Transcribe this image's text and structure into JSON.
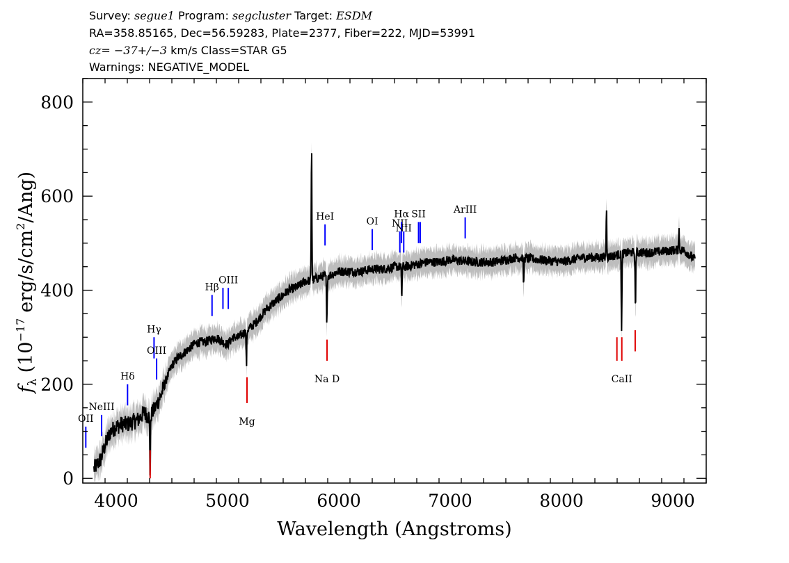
{
  "header": {
    "line1": {
      "survey_label": "Survey:",
      "survey": "segue1",
      "program_label": "Program:",
      "program": "segcluster",
      "target_label": "Target:",
      "target": "ESDM"
    },
    "line2": "RA=358.85165, Dec=56.59283, Plate=2377, Fiber=222, MJD=53991",
    "line3": {
      "cz_label": "cz=",
      "cz_value": "−37+/−3",
      "rest": "km/s Class=STAR G5"
    },
    "line4": "Warnings: NEGATIVE_MODEL"
  },
  "chart_data": {
    "type": "line",
    "xlabel": "Wavelength (Angstroms)",
    "ylabel": {
      "f": "f",
      "sub": "λ",
      "pre": "(10",
      "exp": "−17",
      "mid": "erg/s/cm",
      "exp2": "2",
      "post": "/Ang)"
    },
    "xlim": [
      3700,
      9300
    ],
    "ylim": [
      -10,
      850
    ],
    "xticks": [
      4000,
      5000,
      6000,
      7000,
      8000,
      9000
    ],
    "xtick_labels": [
      "4000",
      "5000",
      "6000",
      "7000",
      "8000",
      "9000"
    ],
    "yticks": [
      0,
      200,
      400,
      600,
      800
    ],
    "ytick_labels": [
      "0",
      "200",
      "400",
      "600",
      "800"
    ],
    "spectrum": {
      "x_range": [
        3800,
        9200
      ],
      "anchors": [
        [
          3800,
          20
        ],
        [
          3860,
          40
        ],
        [
          3900,
          70
        ],
        [
          3950,
          100
        ],
        [
          4000,
          110
        ],
        [
          4050,
          115
        ],
        [
          4100,
          115
        ],
        [
          4150,
          120
        ],
        [
          4200,
          125
        ],
        [
          4250,
          140
        ],
        [
          4300,
          130
        ],
        [
          4350,
          150
        ],
        [
          4400,
          175
        ],
        [
          4450,
          210
        ],
        [
          4500,
          240
        ],
        [
          4550,
          255
        ],
        [
          4600,
          265
        ],
        [
          4650,
          275
        ],
        [
          4700,
          285
        ],
        [
          4750,
          290
        ],
        [
          4800,
          290
        ],
        [
          4850,
          295
        ],
        [
          4900,
          300
        ],
        [
          4950,
          290
        ],
        [
          5000,
          285
        ],
        [
          5050,
          300
        ],
        [
          5100,
          300
        ],
        [
          5150,
          310
        ],
        [
          5200,
          320
        ],
        [
          5250,
          330
        ],
        [
          5300,
          345
        ],
        [
          5350,
          360
        ],
        [
          5400,
          370
        ],
        [
          5450,
          380
        ],
        [
          5500,
          390
        ],
        [
          5550,
          400
        ],
        [
          5600,
          405
        ],
        [
          5650,
          410
        ],
        [
          5700,
          420
        ],
        [
          5750,
          420
        ],
        [
          5800,
          425
        ],
        [
          5850,
          430
        ],
        [
          5900,
          430
        ],
        [
          5950,
          435
        ],
        [
          6000,
          440
        ],
        [
          6100,
          440
        ],
        [
          6200,
          440
        ],
        [
          6300,
          445
        ],
        [
          6400,
          445
        ],
        [
          6500,
          450
        ],
        [
          6600,
          450
        ],
        [
          6700,
          455
        ],
        [
          6800,
          460
        ],
        [
          6900,
          460
        ],
        [
          7000,
          465
        ],
        [
          7200,
          460
        ],
        [
          7400,
          460
        ],
        [
          7600,
          470
        ],
        [
          7800,
          465
        ],
        [
          8000,
          460
        ],
        [
          8200,
          470
        ],
        [
          8400,
          470
        ],
        [
          8600,
          480
        ],
        [
          8800,
          480
        ],
        [
          9000,
          485
        ],
        [
          9100,
          485
        ],
        [
          9200,
          465
        ]
      ],
      "features": [
        {
          "x": 4305,
          "y": 10
        },
        {
          "x": 5170,
          "y": 240
        },
        {
          "x": 5755,
          "y": 710
        },
        {
          "x": 5892,
          "y": 320
        },
        {
          "x": 6565,
          "y": 385
        },
        {
          "x": 7660,
          "y": 410
        },
        {
          "x": 8404,
          "y": 570
        },
        {
          "x": 8540,
          "y": 320
        },
        {
          "x": 8664,
          "y": 360
        },
        {
          "x": 9055,
          "y": 535
        }
      ]
    },
    "emission_lines": [
      {
        "name": "OII",
        "label": "OII",
        "x": 3727,
        "y0": 65,
        "y1": 110,
        "label_y": 120
      },
      {
        "name": "NeIII",
        "label": "NeIII",
        "x": 3869,
        "y0": 90,
        "y1": 135,
        "label_y": 145
      },
      {
        "name": "H-delta",
        "label": "Hδ",
        "x": 4102,
        "y0": 155,
        "y1": 200,
        "label_y": 210
      },
      {
        "name": "H-gamma",
        "label": "Hγ",
        "x": 4340,
        "y0": 255,
        "y1": 300,
        "label_y": 310
      },
      {
        "name": "OIII-4363",
        "label": "OIII",
        "x": 4363,
        "y0": 210,
        "y1": 255,
        "label_y": 265
      },
      {
        "name": "H-beta",
        "label": "Hβ",
        "x": 4861,
        "y0": 345,
        "y1": 390,
        "label_y": 400
      },
      {
        "name": "OIII-4959",
        "label": "",
        "x": 4959,
        "y0": 360,
        "y1": 405,
        "label_y": 0
      },
      {
        "name": "OIII-5007",
        "label": "OIII",
        "x": 5007,
        "y0": 360,
        "y1": 405,
        "label_y": 415
      },
      {
        "name": "HeI",
        "label": "HeI",
        "x": 5876,
        "y0": 495,
        "y1": 540,
        "label_y": 550
      },
      {
        "name": "OI",
        "label": "OI",
        "x": 6300,
        "y0": 485,
        "y1": 530,
        "label_y": 540
      },
      {
        "name": "NII-6548",
        "label": "NII",
        "x": 6548,
        "y0": 480,
        "y1": 525,
        "label_y": 535
      },
      {
        "name": "H-alpha",
        "label": "Hα",
        "x": 6563,
        "y0": 500,
        "y1": 545,
        "label_y": 555
      },
      {
        "name": "NII-6583",
        "label": "NII",
        "x": 6583,
        "y0": 480,
        "y1": 525,
        "label_y": 525
      },
      {
        "name": "SII-6716",
        "label": "SII",
        "x": 6716,
        "y0": 500,
        "y1": 545,
        "label_y": 555
      },
      {
        "name": "SII-6731",
        "label": "",
        "x": 6731,
        "y0": 500,
        "y1": 545,
        "label_y": 0
      },
      {
        "name": "ArIII",
        "label": "ArIII",
        "x": 7135,
        "y0": 510,
        "y1": 555,
        "label_y": 565
      }
    ],
    "absorption_lines": [
      {
        "name": "G-band",
        "label": "",
        "x": 4305,
        "y0": 0,
        "y1": 60,
        "label_y": 0
      },
      {
        "name": "Mg",
        "label": "Mg",
        "x": 5175,
        "y0": 160,
        "y1": 215,
        "label_y": 135
      },
      {
        "name": "Na-D",
        "label": "Na D",
        "x": 5894,
        "y0": 250,
        "y1": 295,
        "label_y": 225
      },
      {
        "name": "CaII-8498",
        "label": "",
        "x": 8498,
        "y0": 250,
        "y1": 300,
        "label_y": 0
      },
      {
        "name": "CaII-8542",
        "label": "CaII",
        "x": 8542,
        "y0": 250,
        "y1": 300,
        "label_y": 225
      },
      {
        "name": "CaII-8662",
        "label": "",
        "x": 8662,
        "y0": 270,
        "y1": 315,
        "label_y": 0
      }
    ],
    "colors": {
      "spectrum": "#000000",
      "error": "#bdbdbd",
      "emission": "#0000ff",
      "absorption": "#e00000"
    }
  }
}
